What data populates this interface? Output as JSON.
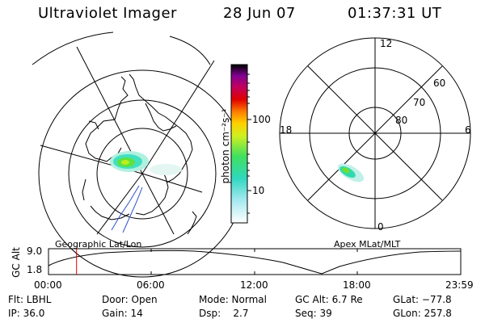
{
  "header": {
    "instrument": "Ultraviolet Imager",
    "date": "28 Jun 07",
    "time": "01:37:31 UT"
  },
  "colorbar": {
    "label": "photon cm⁻²s⁻¹",
    "ticks": [
      "100",
      "10"
    ]
  },
  "geo_panel": {
    "label": "Geographic Lat/Lon"
  },
  "mag_panel": {
    "label": "Apex MLat/MLT",
    "lat_labels": [
      "60",
      "70",
      "80"
    ],
    "mlt_labels": [
      "12",
      "18",
      "6",
      "0"
    ]
  },
  "altitude_plot": {
    "ylabel": "GC Alt",
    "yticks": [
      "9.0",
      "1.8"
    ],
    "xticks": [
      "00:00",
      "06:00",
      "12:00",
      "18:00",
      "23:59"
    ],
    "current_time_fraction": 0.068
  },
  "info": {
    "flt": "Flt: LBHL",
    "ip": "IP: 36.0",
    "door": "Door: Open",
    "gain": "Gain: 14",
    "mode": "Mode: Normal",
    "dsp": "Dsp:    2.7",
    "gcalt": "GC Alt: 6.7 Re",
    "seq": "Seq: 39",
    "glat": "GLat: −77.8",
    "glon": "GLon: 257.8"
  },
  "colors": {
    "accent_red": "#e00000",
    "coast_blue": "#3050d0"
  }
}
